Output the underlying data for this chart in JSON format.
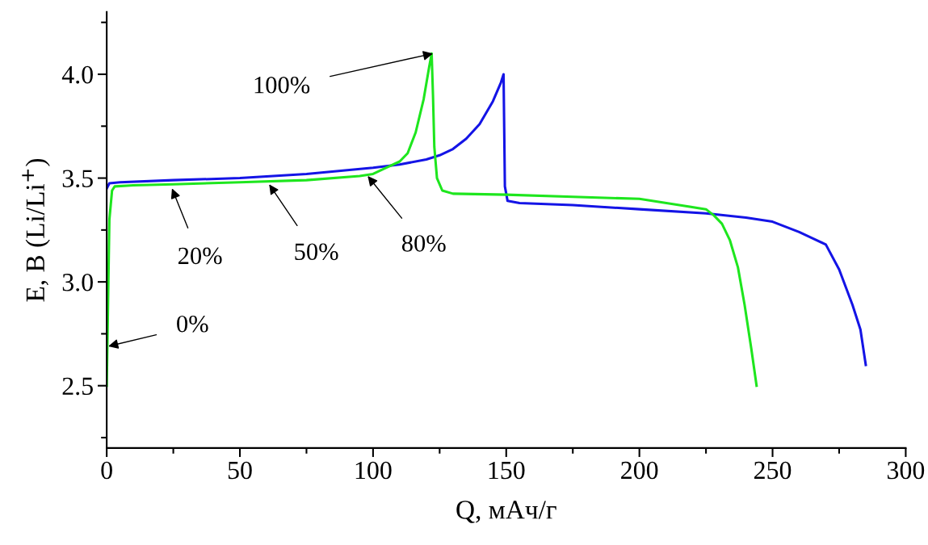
{
  "chart_data": {
    "type": "line",
    "xlabel": "Q, мАч/г",
    "ylabel": "E, B (Li/Li$^{+}$)",
    "xlim": [
      0,
      300
    ],
    "xticks": [
      0,
      {
        "value": 25,
        "label": null
      },
      50,
      {
        "value": 75,
        "label": null
      },
      100,
      {
        "value": 125,
        "label": null
      },
      150,
      {
        "value": 175,
        "label": null
      },
      200,
      {
        "value": 225,
        "label": null
      },
      250,
      {
        "value": 275,
        "label": null
      },
      300
    ],
    "ylim": [
      2.2,
      4.3
    ],
    "yticks": [
      {
        "value": 2.25,
        "label": null
      },
      "2.5",
      {
        "value": 2.75,
        "label": null
      },
      {
        "value": 3.0,
        "label": "3.0"
      },
      {
        "value": 3.25,
        "label": null
      },
      {
        "value": 3.5,
        "label": "3.5"
      },
      {
        "value": 3.75,
        "label": null
      },
      {
        "value": 4.0,
        "label": "4.0"
      },
      {
        "value": 4.25,
        "label": null
      }
    ],
    "grid": false,
    "marker": "none",
    "line_style": "solid",
    "series": [
      {
        "color": "#1414e6",
        "x": [
          0,
          1,
          5,
          25,
          50,
          75,
          100,
          110,
          120,
          125,
          130,
          135,
          140,
          145,
          148,
          149,
          149.5,
          150.5,
          155,
          175,
          200,
          225,
          240,
          250,
          260,
          265,
          270,
          275,
          280,
          283,
          285
        ],
        "values": [
          3.45,
          3.475,
          3.48,
          3.49,
          3.5,
          3.52,
          3.55,
          3.565,
          3.59,
          3.61,
          3.64,
          3.69,
          3.76,
          3.87,
          3.96,
          4.0,
          3.46,
          3.39,
          3.38,
          3.37,
          3.35,
          3.33,
          3.31,
          3.29,
          3.24,
          3.21,
          3.18,
          3.06,
          2.89,
          2.77,
          2.6
        ]
      },
      {
        "color": "#1ee61e",
        "x": [
          0,
          0.5,
          1,
          2,
          3,
          10,
          25,
          50,
          75,
          95,
          100,
          105,
          110,
          113,
          116,
          119,
          121,
          122,
          122.5,
          123,
          124,
          126,
          130,
          150,
          175,
          200,
          215,
          225,
          228,
          231,
          234,
          237,
          239.5,
          242,
          244
        ],
        "values": [
          2.5,
          2.9,
          3.3,
          3.44,
          3.46,
          3.465,
          3.47,
          3.48,
          3.49,
          3.51,
          3.52,
          3.55,
          3.58,
          3.62,
          3.72,
          3.88,
          4.03,
          4.1,
          3.9,
          3.65,
          3.5,
          3.44,
          3.425,
          3.42,
          3.41,
          3.4,
          3.37,
          3.35,
          3.32,
          3.28,
          3.2,
          3.07,
          2.89,
          2.68,
          2.5
        ]
      }
    ],
    "annotations": [
      {
        "text": "0%",
        "x": 0.6,
        "y": 2.69
      },
      {
        "text": "20%",
        "x": 24.5,
        "y": 3.45
      },
      {
        "text": "50%",
        "x": 61,
        "y": 3.47
      },
      {
        "text": "80%",
        "x": 98,
        "y": 3.51
      },
      {
        "text": "100%",
        "x": 122.5,
        "y": 4.1
      }
    ]
  }
}
